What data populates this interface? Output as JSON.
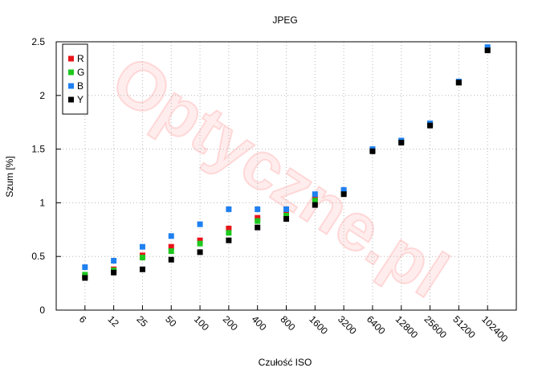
{
  "chart_data": {
    "type": "scatter",
    "title": "JPEG",
    "watermark": "Optyczne.pl",
    "x_label": "Czułość ISO",
    "y_label": "Szum [%]",
    "categories": [
      "6",
      "12",
      "25",
      "50",
      "100",
      "200",
      "400",
      "800",
      "1600",
      "3200",
      "6400",
      "12800",
      "25600",
      "51200",
      "102400"
    ],
    "series": [
      {
        "name": "R",
        "color": "#e8141a",
        "values": [
          0.32,
          0.38,
          0.51,
          0.59,
          0.65,
          0.76,
          0.86,
          0.9,
          1.04,
          1.1,
          1.49,
          1.57,
          1.73,
          2.12,
          2.43
        ]
      },
      {
        "name": "G",
        "color": "#1ec81e",
        "values": [
          0.33,
          0.37,
          0.49,
          0.55,
          0.62,
          0.72,
          0.83,
          0.88,
          1.02,
          1.09,
          1.49,
          1.57,
          1.73,
          2.12,
          2.43
        ]
      },
      {
        "name": "B",
        "color": "#1e80f0",
        "values": [
          0.4,
          0.46,
          0.59,
          0.69,
          0.8,
          0.94,
          0.94,
          0.94,
          1.08,
          1.12,
          1.5,
          1.58,
          1.74,
          2.13,
          2.45
        ]
      },
      {
        "name": "Y",
        "color": "#000000",
        "values": [
          0.3,
          0.35,
          0.38,
          0.47,
          0.54,
          0.65,
          0.77,
          0.85,
          0.98,
          1.08,
          1.48,
          1.56,
          1.72,
          2.12,
          2.42
        ]
      }
    ],
    "ylim": [
      0,
      2.5
    ],
    "yticks": [
      0,
      0.5,
      1,
      1.5,
      2,
      2.5
    ],
    "grid": true,
    "legend": "top-left"
  }
}
